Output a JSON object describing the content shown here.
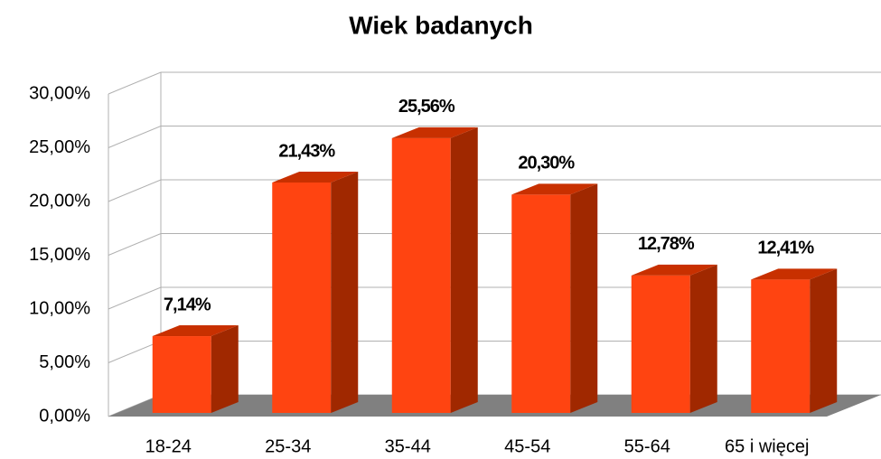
{
  "chart_data": {
    "type": "bar3d",
    "title": "Wiek badanych",
    "categories": [
      "18-24",
      "25-34",
      "35-44",
      "45-54",
      "55-64",
      "65 i więcej"
    ],
    "values": [
      7.14,
      21.43,
      25.56,
      20.3,
      12.78,
      12.41
    ],
    "value_labels": [
      "7,14%",
      "21,43%",
      "25,56%",
      "20,30%",
      "12,78%",
      "12,41%"
    ],
    "color": "#ff4411",
    "ylim": [
      0,
      30
    ],
    "yticks": [
      {
        "value": 0,
        "label": "0,00%"
      },
      {
        "value": 5,
        "label": "5,00%"
      },
      {
        "value": 10,
        "label": "10,00%"
      },
      {
        "value": 15,
        "label": "15,00%"
      },
      {
        "value": 20,
        "label": "20,00%"
      },
      {
        "value": 25,
        "label": "25,00%"
      },
      {
        "value": 30,
        "label": "30,00%"
      }
    ],
    "grid": true
  }
}
